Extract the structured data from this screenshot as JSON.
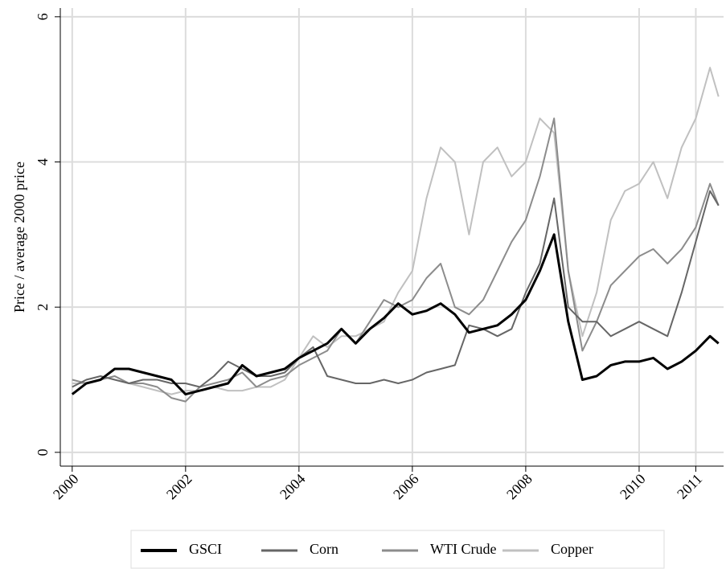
{
  "chart_data": {
    "type": "line",
    "ylabel": "Price / average 2000 price",
    "x": [
      2000,
      2000.25,
      2000.5,
      2000.75,
      2001,
      2001.25,
      2001.5,
      2001.75,
      2002,
      2002.25,
      2002.5,
      2002.75,
      2003,
      2003.25,
      2003.5,
      2003.75,
      2004,
      2004.25,
      2004.5,
      2004.75,
      2005,
      2005.25,
      2005.5,
      2005.75,
      2006,
      2006.25,
      2006.5,
      2006.75,
      2007,
      2007.25,
      2007.5,
      2007.75,
      2008,
      2008.25,
      2008.5,
      2008.75,
      2009,
      2009.25,
      2009.5,
      2009.75,
      2010,
      2010.25,
      2010.5,
      2010.75,
      2011,
      2011.25,
      2011.4
    ],
    "series": [
      {
        "name": "GSCI",
        "color": "#000000",
        "values": [
          0.8,
          0.95,
          1.0,
          1.15,
          1.15,
          1.1,
          1.05,
          1.0,
          0.8,
          0.85,
          0.9,
          0.95,
          1.2,
          1.05,
          1.1,
          1.15,
          1.3,
          1.4,
          1.5,
          1.7,
          1.5,
          1.7,
          1.85,
          2.05,
          1.9,
          1.95,
          2.05,
          1.9,
          1.65,
          1.7,
          1.75,
          1.9,
          2.1,
          2.5,
          3.0,
          1.8,
          1.0,
          1.05,
          1.2,
          1.25,
          1.25,
          1.3,
          1.15,
          1.25,
          1.4,
          1.6,
          1.5
        ]
      },
      {
        "name": "Corn",
        "color": "#666666",
        "values": [
          0.9,
          1.0,
          1.05,
          1.0,
          0.95,
          1.0,
          1.0,
          0.95,
          0.95,
          0.9,
          1.05,
          1.25,
          1.15,
          1.05,
          1.05,
          1.1,
          1.3,
          1.45,
          1.05,
          1.0,
          0.95,
          0.95,
          1.0,
          0.95,
          1.0,
          1.1,
          1.15,
          1.2,
          1.75,
          1.7,
          1.6,
          1.7,
          2.2,
          2.6,
          3.5,
          2.0,
          1.8,
          1.8,
          1.6,
          1.7,
          1.8,
          1.7,
          1.6,
          2.2,
          2.9,
          3.6,
          3.4
        ]
      },
      {
        "name": "WTI Crude",
        "color": "#8c8c8c",
        "values": [
          1.0,
          0.95,
          1.0,
          1.05,
          0.95,
          0.95,
          0.9,
          0.75,
          0.7,
          0.9,
          0.95,
          1.0,
          1.1,
          0.9,
          1.0,
          1.05,
          1.2,
          1.3,
          1.4,
          1.7,
          1.5,
          1.8,
          2.1,
          2.0,
          2.1,
          2.4,
          2.6,
          2.0,
          1.9,
          2.1,
          2.5,
          2.9,
          3.2,
          3.8,
          4.6,
          2.5,
          1.4,
          1.8,
          2.3,
          2.5,
          2.7,
          2.8,
          2.6,
          2.8,
          3.1,
          3.7,
          3.4
        ]
      },
      {
        "name": "Copper",
        "color": "#c0c0c0",
        "values": [
          0.95,
          0.95,
          1.0,
          1.05,
          0.95,
          0.9,
          0.85,
          0.8,
          0.85,
          0.85,
          0.9,
          0.85,
          0.85,
          0.9,
          0.9,
          1.0,
          1.3,
          1.6,
          1.45,
          1.6,
          1.6,
          1.7,
          1.8,
          2.2,
          2.5,
          3.5,
          4.2,
          4.0,
          3.0,
          4.0,
          4.2,
          3.8,
          4.0,
          4.6,
          4.4,
          2.5,
          1.6,
          2.2,
          3.2,
          3.6,
          3.7,
          4.0,
          3.5,
          4.2,
          4.6,
          5.3,
          4.9
        ]
      }
    ],
    "xlim": [
      1999.79,
      2011.49
    ],
    "xticks": [
      2000,
      2002,
      2004,
      2006,
      2008,
      2010,
      2011
    ],
    "ylim": [
      -0.19,
      6.12
    ],
    "yticks": [
      0,
      2,
      4,
      6
    ],
    "grid": true,
    "legend": "bottom"
  }
}
